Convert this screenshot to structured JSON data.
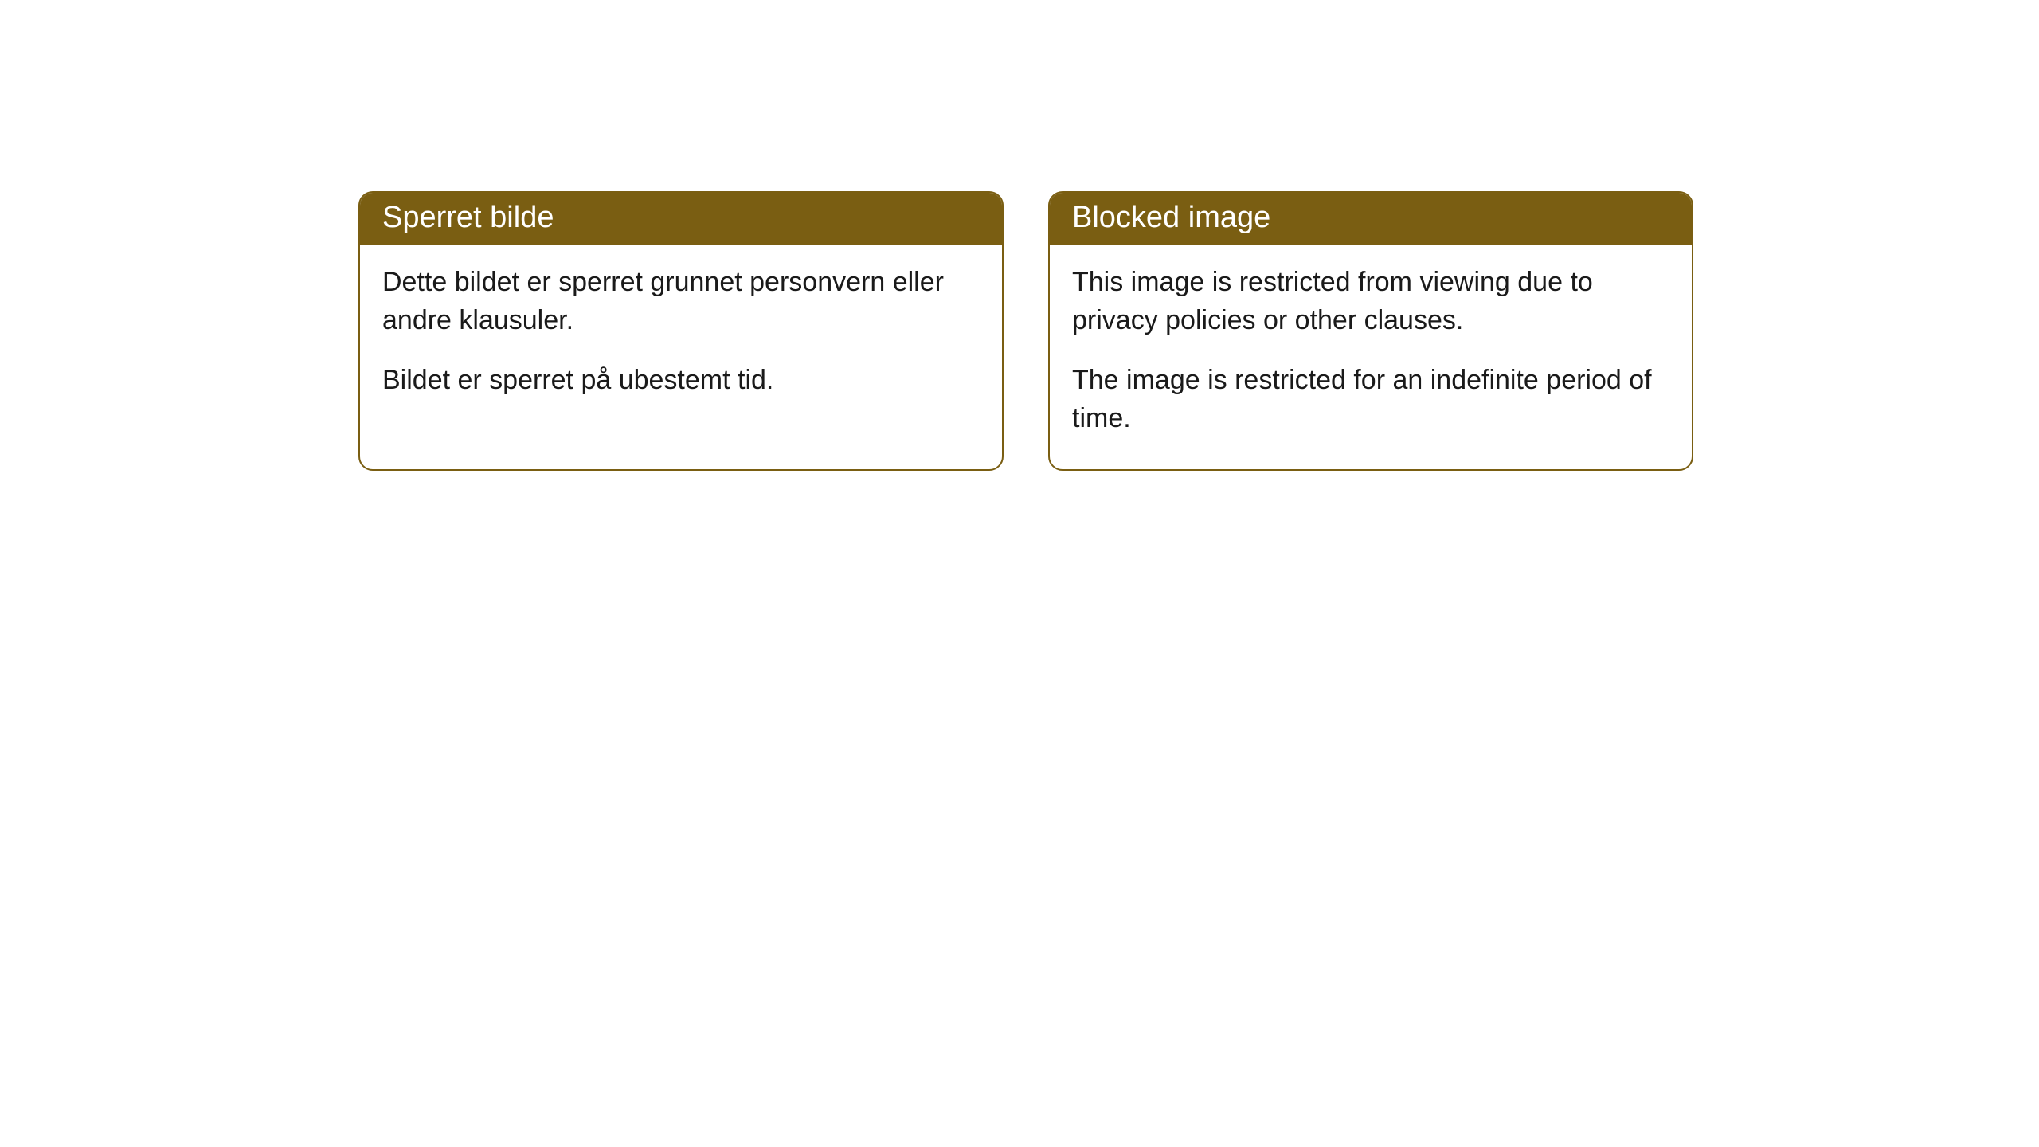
{
  "cards": [
    {
      "title": "Sperret bilde",
      "paragraph1": "Dette bildet er sperret grunnet personvern eller andre klausuler.",
      "paragraph2": "Bildet er sperret på ubestemt tid."
    },
    {
      "title": "Blocked image",
      "paragraph1": "This image is restricted from viewing due to privacy policies or other clauses.",
      "paragraph2": "The image is restricted for an indefinite period of time."
    }
  ],
  "style": {
    "header_bg": "#7a5e12",
    "header_text_color": "#ffffff",
    "border_color": "#7a5e12",
    "body_bg": "#ffffff",
    "body_text_color": "#1a1a1a",
    "border_radius": 18,
    "header_fontsize": 38,
    "body_fontsize": 34
  }
}
